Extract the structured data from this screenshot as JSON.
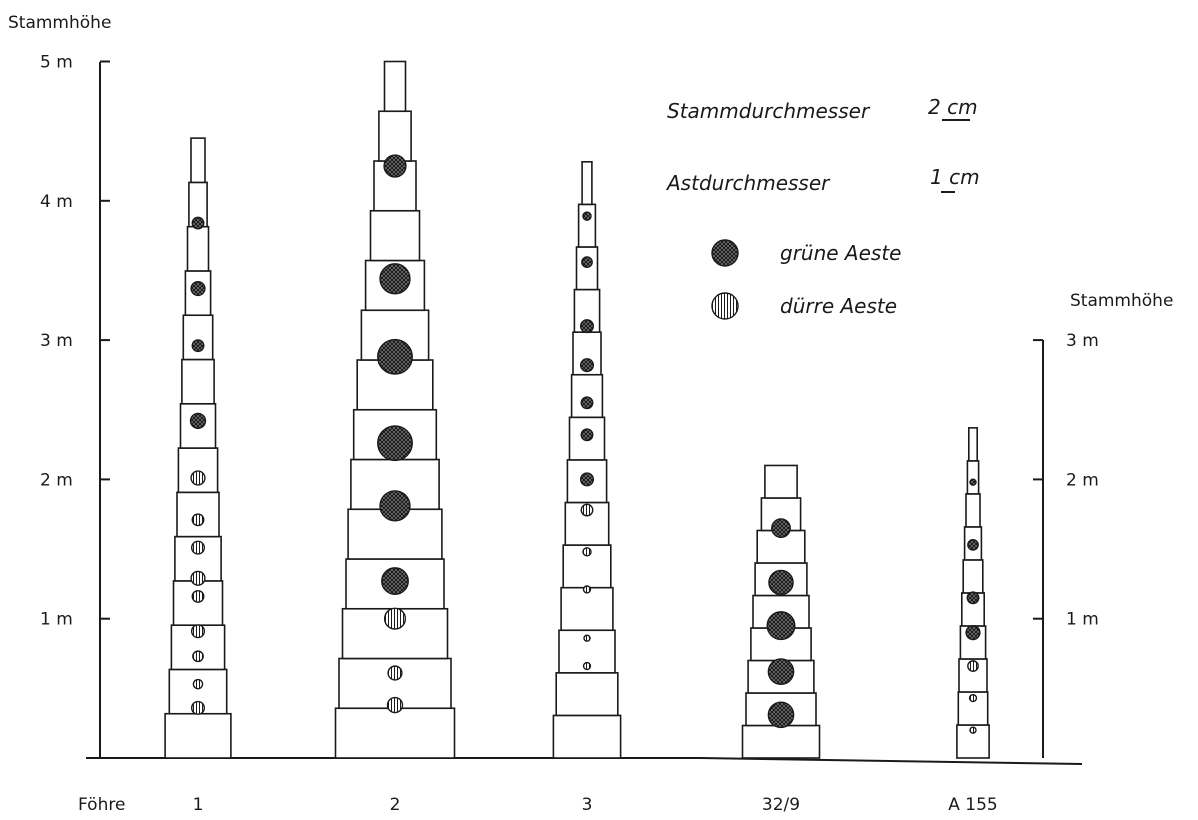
{
  "left_axis": {
    "title": "Stammhöhe",
    "ticks": [
      {
        "value": 1,
        "label": "1 m"
      },
      {
        "value": 2,
        "label": "2 m"
      },
      {
        "value": 3,
        "label": "3 m"
      },
      {
        "value": 4,
        "label": "4 m"
      },
      {
        "value": 5,
        "label": "5 m"
      }
    ]
  },
  "right_axis": {
    "title": "Stammhöhe",
    "ticks": [
      {
        "value": 1,
        "label": "1 m"
      },
      {
        "value": 2,
        "label": "2 m"
      },
      {
        "value": 3,
        "label": "3 m"
      }
    ]
  },
  "x_axis_label": "Föhre",
  "legend": {
    "stem_scale_label": "Stammdurchmesser",
    "stem_scale_value": "2 cm",
    "branch_scale_label": "Astdurchmesser",
    "branch_scale_value": "1 cm",
    "green_label": "grüne Aeste",
    "dry_label": "dürre Aeste"
  },
  "colors": {
    "ink": "#1a1a1a",
    "green_branch": "#4a4a4a",
    "dry_branch": "#ffffff"
  },
  "trees": [
    {
      "label": "1",
      "height_m": 4.45,
      "stem_diameters_cm": [
        9.4,
        8.2,
        7.6,
        7.0,
        6.6,
        6.0,
        5.6,
        5.0,
        4.6,
        4.2,
        3.6,
        3.0,
        2.6,
        2.0
      ],
      "branches": [
        {
          "h": 0.36,
          "d": 1.1,
          "kind": "dry"
        },
        {
          "h": 0.53,
          "d": 0.8,
          "kind": "dry"
        },
        {
          "h": 0.73,
          "d": 0.9,
          "kind": "dry"
        },
        {
          "h": 0.91,
          "d": 1.1,
          "kind": "dry"
        },
        {
          "h": 1.16,
          "d": 1.0,
          "kind": "dry"
        },
        {
          "h": 1.29,
          "d": 1.2,
          "kind": "dry"
        },
        {
          "h": 1.51,
          "d": 1.1,
          "kind": "dry"
        },
        {
          "h": 1.71,
          "d": 1.0,
          "kind": "dry"
        },
        {
          "h": 2.01,
          "d": 1.2,
          "kind": "dry"
        },
        {
          "h": 2.42,
          "d": 1.3,
          "kind": "green"
        },
        {
          "h": 2.96,
          "d": 1.0,
          "kind": "green"
        },
        {
          "h": 3.37,
          "d": 1.2,
          "kind": "green"
        },
        {
          "h": 3.84,
          "d": 1.0,
          "kind": "green"
        }
      ]
    },
    {
      "label": "2",
      "height_m": 5.0,
      "stem_diameters_cm": [
        17.0,
        16.0,
        15.0,
        14.0,
        13.4,
        12.6,
        11.8,
        10.8,
        9.6,
        8.4,
        7.0,
        6.0,
        4.6,
        3.0
      ],
      "branches": [
        {
          "h": 0.38,
          "d": 1.3,
          "kind": "dry"
        },
        {
          "h": 0.61,
          "d": 1.2,
          "kind": "dry"
        },
        {
          "h": 1.0,
          "d": 1.8,
          "kind": "dry"
        },
        {
          "h": 1.27,
          "d": 2.3,
          "kind": "green"
        },
        {
          "h": 1.81,
          "d": 2.6,
          "kind": "green"
        },
        {
          "h": 2.26,
          "d": 3.0,
          "kind": "green"
        },
        {
          "h": 2.88,
          "d": 3.0,
          "kind": "green"
        },
        {
          "h": 3.44,
          "d": 2.6,
          "kind": "green"
        },
        {
          "h": 4.25,
          "d": 1.9,
          "kind": "green"
        }
      ]
    },
    {
      "label": "3",
      "height_m": 4.28,
      "stem_diameters_cm": [
        9.6,
        8.8,
        8.0,
        7.4,
        6.8,
        6.2,
        5.6,
        5.0,
        4.4,
        4.0,
        3.6,
        3.0,
        2.4,
        1.4
      ],
      "branches": [
        {
          "h": 0.66,
          "d": 0.6,
          "kind": "dry"
        },
        {
          "h": 0.86,
          "d": 0.4,
          "kind": "dry"
        },
        {
          "h": 1.21,
          "d": 0.6,
          "kind": "dry"
        },
        {
          "h": 1.48,
          "d": 0.7,
          "kind": "dry"
        },
        {
          "h": 1.78,
          "d": 1.0,
          "kind": "dry"
        },
        {
          "h": 2.0,
          "d": 1.1,
          "kind": "green"
        },
        {
          "h": 2.32,
          "d": 1.0,
          "kind": "green"
        },
        {
          "h": 2.55,
          "d": 1.0,
          "kind": "green"
        },
        {
          "h": 2.82,
          "d": 1.1,
          "kind": "green"
        },
        {
          "h": 3.1,
          "d": 1.1,
          "kind": "green"
        },
        {
          "h": 3.56,
          "d": 0.9,
          "kind": "green"
        },
        {
          "h": 3.89,
          "d": 0.7,
          "kind": "green"
        }
      ]
    }
  ],
  "right_trees": [
    {
      "label": "32/9",
      "height_m": 2.1,
      "stem_diameters_cm": [
        11.0,
        10.0,
        9.4,
        8.6,
        8.0,
        7.4,
        6.8,
        5.6,
        4.6
      ],
      "branches": [
        {
          "h": 0.31,
          "d": 2.2,
          "kind": "green"
        },
        {
          "h": 0.62,
          "d": 2.2,
          "kind": "green"
        },
        {
          "h": 0.95,
          "d": 2.4,
          "kind": "green"
        },
        {
          "h": 1.26,
          "d": 2.1,
          "kind": "green"
        },
        {
          "h": 1.65,
          "d": 1.6,
          "kind": "green"
        }
      ]
    },
    {
      "label": "A 155",
      "height_m": 2.37,
      "stem_diameters_cm": [
        4.6,
        4.2,
        4.0,
        3.6,
        3.2,
        2.8,
        2.4,
        2.0,
        1.6,
        1.2
      ],
      "branches": [
        {
          "h": 0.2,
          "d": 0.4,
          "kind": "dry"
        },
        {
          "h": 0.43,
          "d": 0.6,
          "kind": "dry"
        },
        {
          "h": 0.66,
          "d": 0.9,
          "kind": "dry"
        },
        {
          "h": 0.9,
          "d": 1.2,
          "kind": "green"
        },
        {
          "h": 1.15,
          "d": 1.0,
          "kind": "green"
        },
        {
          "h": 1.53,
          "d": 0.9,
          "kind": "green"
        },
        {
          "h": 1.98,
          "d": 0.5,
          "kind": "green"
        }
      ]
    }
  ]
}
